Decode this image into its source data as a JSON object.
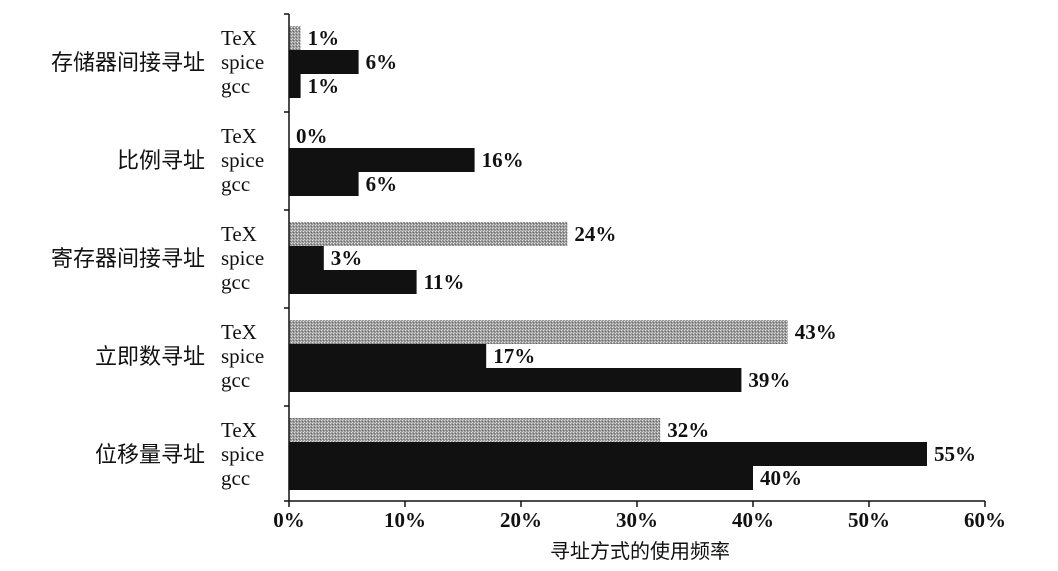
{
  "chart_data": {
    "type": "bar",
    "orientation": "horizontal",
    "categories": [
      "存储器间接寻址",
      "比例寻址",
      "寄存器间接寻址",
      "立即数寻址",
      "位移量寻址"
    ],
    "series": [
      {
        "name": "TeX",
        "values": [
          1,
          0,
          24,
          43,
          32
        ],
        "color": "#a8a8a8"
      },
      {
        "name": "spice",
        "values": [
          6,
          16,
          3,
          17,
          55
        ],
        "color": "#111111"
      },
      {
        "name": "gcc",
        "values": [
          1,
          6,
          11,
          39,
          40
        ],
        "color": "#111111"
      }
    ],
    "value_labels": [
      [
        "1%",
        "6%",
        "1%"
      ],
      [
        "0%",
        "16%",
        "6%"
      ],
      [
        "24%",
        "3%",
        "11%"
      ],
      [
        "43%",
        "17%",
        "39%"
      ],
      [
        "32%",
        "55%",
        "40%"
      ]
    ],
    "xlabel": "寻址方式的使用频率",
    "xlim": [
      0,
      60
    ],
    "xticks": [
      "0%",
      "10%",
      "20%",
      "30%",
      "40%",
      "50%",
      "60%"
    ],
    "grid": false,
    "legend": "none (series names printed beside each bar group)"
  }
}
